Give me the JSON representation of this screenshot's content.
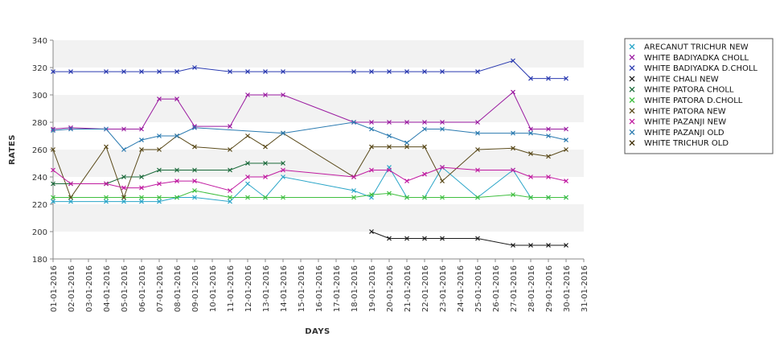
{
  "chart_data": {
    "type": "line",
    "title": "",
    "xlabel": "DAYS",
    "ylabel": "RATES",
    "ylim": [
      180,
      340
    ],
    "yticks": [
      180,
      200,
      220,
      240,
      260,
      280,
      300,
      320,
      340
    ],
    "grid": "alternating horizontal bands",
    "legend_position": "right",
    "x_dates": [
      "01-01-2016",
      "02-01-2016",
      "03-01-2016",
      "04-01-2016",
      "05-01-2016",
      "06-01-2016",
      "07-01-2016",
      "08-01-2016",
      "09-01-2016",
      "10-01-2016",
      "11-01-2016",
      "12-01-2016",
      "13-01-2016",
      "14-01-2016",
      "15-01-2016",
      "16-01-2016",
      "17-01-2016",
      "18-01-2016",
      "19-01-2016",
      "20-01-2016",
      "21-01-2016",
      "22-01-2016",
      "23-01-2016",
      "24-01-2016",
      "25-01-2016",
      "26-01-2016",
      "27-01-2016",
      "28-01-2016",
      "29-01-2016",
      "30-01-2016",
      "31-01-2016"
    ],
    "series": [
      {
        "name": "ARECANUT TRICHUR NEW",
        "color": "#2aa5c8",
        "points": [
          [
            "01-01-2016",
            222
          ],
          [
            "02-01-2016",
            222
          ],
          [
            "04-01-2016",
            222
          ],
          [
            "05-01-2016",
            222
          ],
          [
            "06-01-2016",
            222
          ],
          [
            "07-01-2016",
            222
          ],
          [
            "08-01-2016",
            225
          ],
          [
            "09-01-2016",
            225
          ],
          [
            "11-01-2016",
            222
          ],
          [
            "12-01-2016",
            235
          ],
          [
            "13-01-2016",
            225
          ],
          [
            "14-01-2016",
            240
          ],
          [
            "18-01-2016",
            230
          ],
          [
            "19-01-2016",
            225
          ],
          [
            "20-01-2016",
            247
          ],
          [
            "21-01-2016",
            225
          ],
          [
            "22-01-2016",
            225
          ],
          [
            "23-01-2016",
            247
          ],
          [
            "25-01-2016",
            225
          ],
          [
            "27-01-2016",
            245
          ],
          [
            "28-01-2016",
            225
          ],
          [
            "29-01-2016",
            225
          ],
          [
            "30-01-2016",
            225
          ]
        ]
      },
      {
        "name": "WHITE BADIYADKA CHOLL",
        "color": "#9a1aa0",
        "points": [
          [
            "01-01-2016",
            275
          ],
          [
            "02-01-2016",
            276
          ],
          [
            "04-01-2016",
            275
          ],
          [
            "05-01-2016",
            275
          ],
          [
            "06-01-2016",
            275
          ],
          [
            "07-01-2016",
            297
          ],
          [
            "08-01-2016",
            297
          ],
          [
            "09-01-2016",
            277
          ],
          [
            "11-01-2016",
            277
          ],
          [
            "12-01-2016",
            300
          ],
          [
            "13-01-2016",
            300
          ],
          [
            "14-01-2016",
            300
          ],
          [
            "18-01-2016",
            280
          ],
          [
            "19-01-2016",
            280
          ],
          [
            "20-01-2016",
            280
          ],
          [
            "21-01-2016",
            280
          ],
          [
            "22-01-2016",
            280
          ],
          [
            "23-01-2016",
            280
          ],
          [
            "25-01-2016",
            280
          ],
          [
            "27-01-2016",
            302
          ],
          [
            "28-01-2016",
            275
          ],
          [
            "29-01-2016",
            275
          ],
          [
            "30-01-2016",
            275
          ]
        ]
      },
      {
        "name": "WHITE BADIYADKA D.CHOLL",
        "color": "#2a3ab0",
        "points": [
          [
            "01-01-2016",
            317
          ],
          [
            "02-01-2016",
            317
          ],
          [
            "04-01-2016",
            317
          ],
          [
            "05-01-2016",
            317
          ],
          [
            "06-01-2016",
            317
          ],
          [
            "07-01-2016",
            317
          ],
          [
            "08-01-2016",
            317
          ],
          [
            "09-01-2016",
            320
          ],
          [
            "11-01-2016",
            317
          ],
          [
            "12-01-2016",
            317
          ],
          [
            "13-01-2016",
            317
          ],
          [
            "14-01-2016",
            317
          ],
          [
            "18-01-2016",
            317
          ],
          [
            "19-01-2016",
            317
          ],
          [
            "20-01-2016",
            317
          ],
          [
            "21-01-2016",
            317
          ],
          [
            "22-01-2016",
            317
          ],
          [
            "23-01-2016",
            317
          ],
          [
            "25-01-2016",
            317
          ],
          [
            "27-01-2016",
            325
          ],
          [
            "28-01-2016",
            312
          ],
          [
            "29-01-2016",
            312
          ],
          [
            "30-01-2016",
            312
          ]
        ]
      },
      {
        "name": "WHITE CHALI NEW",
        "color": "#1a1a1a",
        "points": [
          [
            "19-01-2016",
            200
          ],
          [
            "20-01-2016",
            195
          ],
          [
            "21-01-2016",
            195
          ],
          [
            "22-01-2016",
            195
          ],
          [
            "23-01-2016",
            195
          ],
          [
            "25-01-2016",
            195
          ],
          [
            "27-01-2016",
            190
          ],
          [
            "28-01-2016",
            190
          ],
          [
            "29-01-2016",
            190
          ],
          [
            "30-01-2016",
            190
          ]
        ]
      },
      {
        "name": "WHITE PATORA CHOLL",
        "color": "#1a6a3a",
        "points": [
          [
            "01-01-2016",
            235
          ],
          [
            "02-01-2016",
            235
          ],
          [
            "04-01-2016",
            235
          ],
          [
            "05-01-2016",
            240
          ],
          [
            "06-01-2016",
            240
          ],
          [
            "07-01-2016",
            245
          ],
          [
            "08-01-2016",
            245
          ],
          [
            "09-01-2016",
            245
          ],
          [
            "11-01-2016",
            245
          ],
          [
            "12-01-2016",
            250
          ],
          [
            "13-01-2016",
            250
          ],
          [
            "14-01-2016",
            250
          ]
        ]
      },
      {
        "name": "WHITE PATORA D.CHOLL",
        "color": "#3fbf3f",
        "points": [
          [
            "01-01-2016",
            225
          ],
          [
            "02-01-2016",
            225
          ],
          [
            "04-01-2016",
            225
          ],
          [
            "05-01-2016",
            225
          ],
          [
            "06-01-2016",
            225
          ],
          [
            "07-01-2016",
            225
          ],
          [
            "08-01-2016",
            225
          ],
          [
            "09-01-2016",
            230
          ],
          [
            "11-01-2016",
            225
          ],
          [
            "12-01-2016",
            225
          ],
          [
            "13-01-2016",
            225
          ],
          [
            "14-01-2016",
            225
          ],
          [
            "18-01-2016",
            225
          ],
          [
            "19-01-2016",
            227
          ],
          [
            "20-01-2016",
            228
          ],
          [
            "21-01-2016",
            225
          ],
          [
            "22-01-2016",
            225
          ],
          [
            "23-01-2016",
            225
          ],
          [
            "25-01-2016",
            225
          ],
          [
            "27-01-2016",
            227
          ],
          [
            "28-01-2016",
            225
          ],
          [
            "29-01-2016",
            225
          ],
          [
            "30-01-2016",
            225
          ]
        ]
      },
      {
        "name": "WHITE PATORA NEW",
        "color": "#5a4a1a",
        "points": [
          [
            "01-01-2016",
            260
          ],
          [
            "02-01-2016",
            225
          ],
          [
            "04-01-2016",
            262
          ],
          [
            "05-01-2016",
            225
          ],
          [
            "06-01-2016",
            260
          ],
          [
            "07-01-2016",
            260
          ],
          [
            "08-01-2016",
            270
          ],
          [
            "09-01-2016",
            262
          ],
          [
            "11-01-2016",
            260
          ],
          [
            "12-01-2016",
            270
          ],
          [
            "13-01-2016",
            262
          ],
          [
            "14-01-2016",
            272
          ],
          [
            "18-01-2016",
            240
          ],
          [
            "19-01-2016",
            262
          ],
          [
            "20-01-2016",
            262
          ],
          [
            "21-01-2016",
            262
          ],
          [
            "22-01-2016",
            262
          ],
          [
            "23-01-2016",
            237
          ],
          [
            "25-01-2016",
            260
          ],
          [
            "27-01-2016",
            261
          ],
          [
            "28-01-2016",
            257
          ],
          [
            "29-01-2016",
            255
          ],
          [
            "30-01-2016",
            260
          ]
        ]
      },
      {
        "name": "WHITE PAZANJI NEW",
        "color": "#c01aa0",
        "points": [
          [
            "01-01-2016",
            245
          ],
          [
            "02-01-2016",
            235
          ],
          [
            "04-01-2016",
            235
          ],
          [
            "05-01-2016",
            232
          ],
          [
            "06-01-2016",
            232
          ],
          [
            "07-01-2016",
            235
          ],
          [
            "08-01-2016",
            237
          ],
          [
            "09-01-2016",
            237
          ],
          [
            "11-01-2016",
            230
          ],
          [
            "12-01-2016",
            240
          ],
          [
            "13-01-2016",
            240
          ],
          [
            "14-01-2016",
            245
          ],
          [
            "18-01-2016",
            240
          ],
          [
            "19-01-2016",
            245
          ],
          [
            "20-01-2016",
            245
          ],
          [
            "21-01-2016",
            237
          ],
          [
            "22-01-2016",
            242
          ],
          [
            "23-01-2016",
            247
          ],
          [
            "25-01-2016",
            245
          ],
          [
            "27-01-2016",
            245
          ],
          [
            "28-01-2016",
            240
          ],
          [
            "29-01-2016",
            240
          ],
          [
            "30-01-2016",
            237
          ]
        ]
      },
      {
        "name": "WHITE PAZANJI OLD",
        "color": "#2a7ab0",
        "points": [
          [
            "01-01-2016",
            274
          ],
          [
            "02-01-2016",
            275
          ],
          [
            "04-01-2016",
            275
          ],
          [
            "05-01-2016",
            260
          ],
          [
            "06-01-2016",
            267
          ],
          [
            "07-01-2016",
            270
          ],
          [
            "08-01-2016",
            270
          ],
          [
            "09-01-2016",
            276
          ],
          [
            "14-01-2016",
            272
          ],
          [
            "18-01-2016",
            280
          ],
          [
            "19-01-2016",
            275
          ],
          [
            "20-01-2016",
            270
          ],
          [
            "21-01-2016",
            265
          ],
          [
            "22-01-2016",
            275
          ],
          [
            "23-01-2016",
            275
          ],
          [
            "25-01-2016",
            272
          ],
          [
            "27-01-2016",
            272
          ],
          [
            "28-01-2016",
            272
          ],
          [
            "29-01-2016",
            270
          ],
          [
            "30-01-2016",
            267
          ]
        ]
      },
      {
        "name": "WHITE TRICHUR OLD",
        "color": "#3a2a00",
        "points": []
      }
    ]
  }
}
